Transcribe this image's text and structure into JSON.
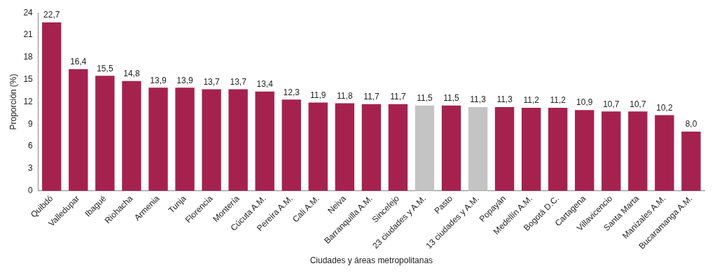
{
  "chart_data": {
    "type": "bar",
    "xlabel": "Ciudades y áreas metropolitanas",
    "ylabel": "Proporción (%)",
    "categories": [
      "Quibdó",
      "Valledupar",
      "Ibagué",
      "Riohacha",
      "Armenia",
      "Tunja",
      "Florencia",
      "Montería",
      "Cúcuta A.M.",
      "Pereira A.M.",
      "Cali A.M.",
      "Neiva",
      "Barranquilla A.M.",
      "Sincelejo",
      "23 ciudades y A.M.",
      "Pasto",
      "13 ciudades y A.M.",
      "Popayán",
      "Medellín A.M.",
      "Bogotá D.C.",
      "Cartagena",
      "Villavicencio",
      "Santa Marta",
      "Manizales A.M.",
      "Bucaramanga A.M."
    ],
    "values": [
      22.7,
      16.4,
      15.5,
      14.8,
      13.9,
      13.9,
      13.7,
      13.7,
      13.4,
      12.3,
      11.9,
      11.8,
      11.7,
      11.7,
      11.5,
      11.5,
      11.3,
      11.3,
      11.2,
      11.2,
      10.9,
      10.7,
      10.7,
      10.2,
      8.0
    ],
    "value_labels": [
      "22,7",
      "16,4",
      "15,5",
      "14,8",
      "13,9",
      "13,9",
      "13,7",
      "13,7",
      "13,4",
      "12,3",
      "11,9",
      "11,8",
      "11,7",
      "11,7",
      "11,5",
      "11,5",
      "11,3",
      "11,3",
      "11,2",
      "11,2",
      "10,9",
      "10,7",
      "10,7",
      "10,2",
      "8,0"
    ],
    "colors": [
      "#a5224f",
      "#a5224f",
      "#a5224f",
      "#a5224f",
      "#a5224f",
      "#a5224f",
      "#a5224f",
      "#a5224f",
      "#a5224f",
      "#a5224f",
      "#a5224f",
      "#a5224f",
      "#a5224f",
      "#a5224f",
      "#c4c4c4",
      "#a5224f",
      "#c4c4c4",
      "#a5224f",
      "#a5224f",
      "#a5224f",
      "#a5224f",
      "#a5224f",
      "#a5224f",
      "#a5224f",
      "#a5224f"
    ],
    "ylim": [
      0,
      24
    ],
    "yticks": [
      0,
      3,
      6,
      9,
      12,
      15,
      18,
      21,
      24
    ],
    "grid": false,
    "legend": false
  }
}
